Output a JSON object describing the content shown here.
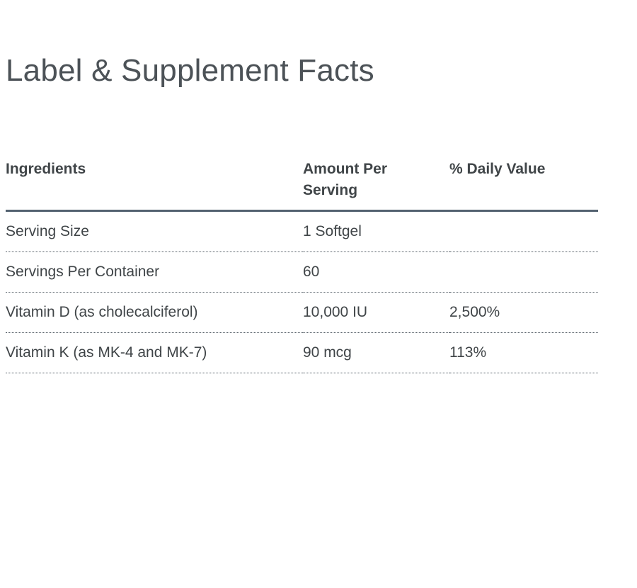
{
  "page_title": "Label & Supplement Facts",
  "supplement_table": {
    "columns": [
      "Ingredients",
      "Amount Per Serving",
      "% Daily Value"
    ],
    "rows": [
      {
        "ingredient": "Serving Size",
        "amount": "1 Softgel",
        "daily_value": ""
      },
      {
        "ingredient": "Servings Per Container",
        "amount": "60",
        "daily_value": ""
      },
      {
        "ingredient": "Vitamin D (as cholecalciferol)",
        "amount": "10,000 IU",
        "daily_value": "2,500%"
      },
      {
        "ingredient": "Vitamin K (as MK-4 and MK-7)",
        "amount": "90 mcg",
        "daily_value": "113%"
      }
    ]
  },
  "colors": {
    "heading_text": "#4c5257",
    "table_text": "#404548",
    "header_rule": "#536270",
    "row_rule": "#59636b",
    "background": "#ffffff"
  }
}
